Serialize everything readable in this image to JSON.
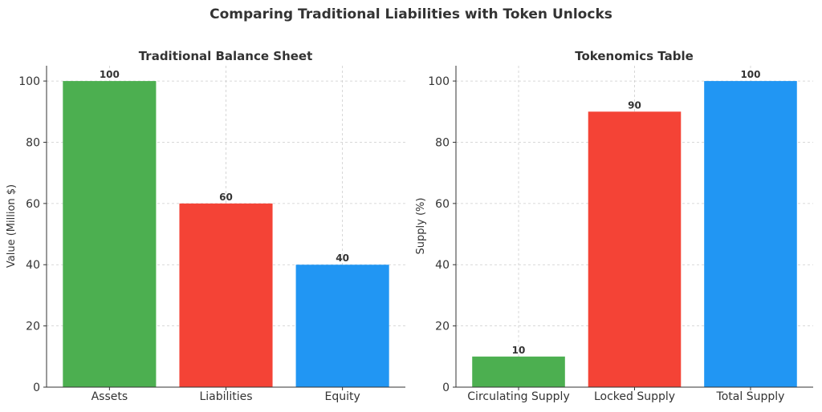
{
  "suptitle": "Comparing Traditional Liabilities with Token Unlocks",
  "chart_data": [
    {
      "type": "bar",
      "title": "Traditional Balance Sheet",
      "xlabel": "",
      "ylabel": "Value (Million $)",
      "categories": [
        "Assets",
        "Liabilities",
        "Equity"
      ],
      "values": [
        100,
        60,
        40
      ],
      "colors": [
        "#4CAF50",
        "#F44336",
        "#2196F3"
      ],
      "ylim": [
        0,
        105
      ],
      "yticks": [
        0,
        20,
        40,
        60,
        80,
        100
      ],
      "grid": true,
      "data_labels": true
    },
    {
      "type": "bar",
      "title": "Tokenomics Table",
      "xlabel": "",
      "ylabel": "Supply (%)",
      "categories": [
        "Circulating Supply",
        "Locked Supply",
        "Total Supply"
      ],
      "values": [
        10,
        90,
        100
      ],
      "colors": [
        "#4CAF50",
        "#F44336",
        "#2196F3"
      ],
      "ylim": [
        0,
        105
      ],
      "yticks": [
        0,
        20,
        40,
        60,
        80,
        100
      ],
      "grid": true,
      "data_labels": true
    }
  ]
}
